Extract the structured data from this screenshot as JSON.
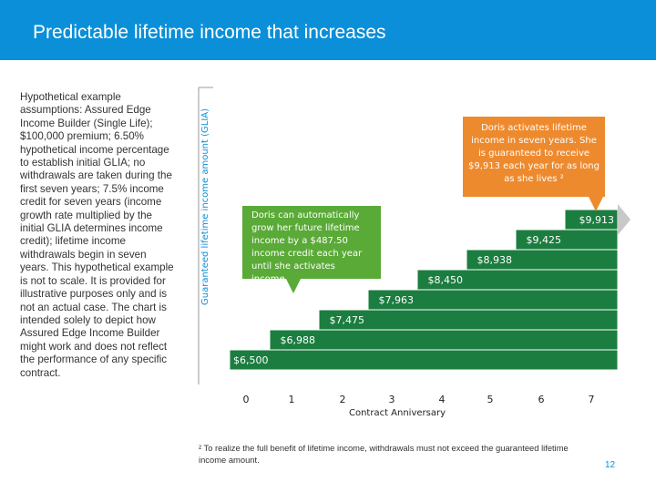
{
  "slide": {
    "title": "Predictable lifetime income that increases",
    "assumptions": "Hypothetical example assumptions: Assured Edge Income Builder (Single Life); $100,000 premium; 6.50% hypothetical income percentage to establish initial GLIA; no withdrawals are taken during the first seven years; 7.5% income credit for seven years (income growth rate multiplied by the initial GLIA determines income credit); lifetime income withdrawals begin in seven years. This hypothetical example is not to scale. It is provided for illustrative purposes only and is not an actual case. The chart is intended solely to depict how Assured Edge Income Builder might work and does not reflect the performance of any specific contract.",
    "footnote": "² To realize the full benefit of lifetime income, withdrawals must not exceed the guaranteed lifetime income amount.",
    "page_number": "12"
  },
  "callouts": {
    "orange": "Doris activates lifetime income in seven years. She is guaranteed to receive $9,913 each year for as long as she lives ²",
    "green": "Doris can automatically grow her future lifetime income by a $487.50 income credit each year until she activates income."
  },
  "colors": {
    "header": "#0a8fd8",
    "bars": "#1b7d3f",
    "orange_callout": "#ee8a2e",
    "green_callout": "#5aaa37",
    "axis_text": "#0a8fd8"
  },
  "chart_data": {
    "type": "bar",
    "xlabel": "Contract Anniversary",
    "ylabel": "Guaranteed lifetime income amount (GLIA)",
    "categories": [
      "0",
      "1",
      "2",
      "3",
      "4",
      "5",
      "6",
      "7"
    ],
    "values": [
      6500,
      6988,
      7475,
      7963,
      8450,
      8938,
      9425,
      9913
    ],
    "labels": [
      "$6,500",
      "$6,988",
      "$7,475",
      "$7,963",
      "$8,450",
      "$8,938",
      "$9,425",
      "$9,913"
    ],
    "style": "stepped blocks with income label inside each step"
  }
}
